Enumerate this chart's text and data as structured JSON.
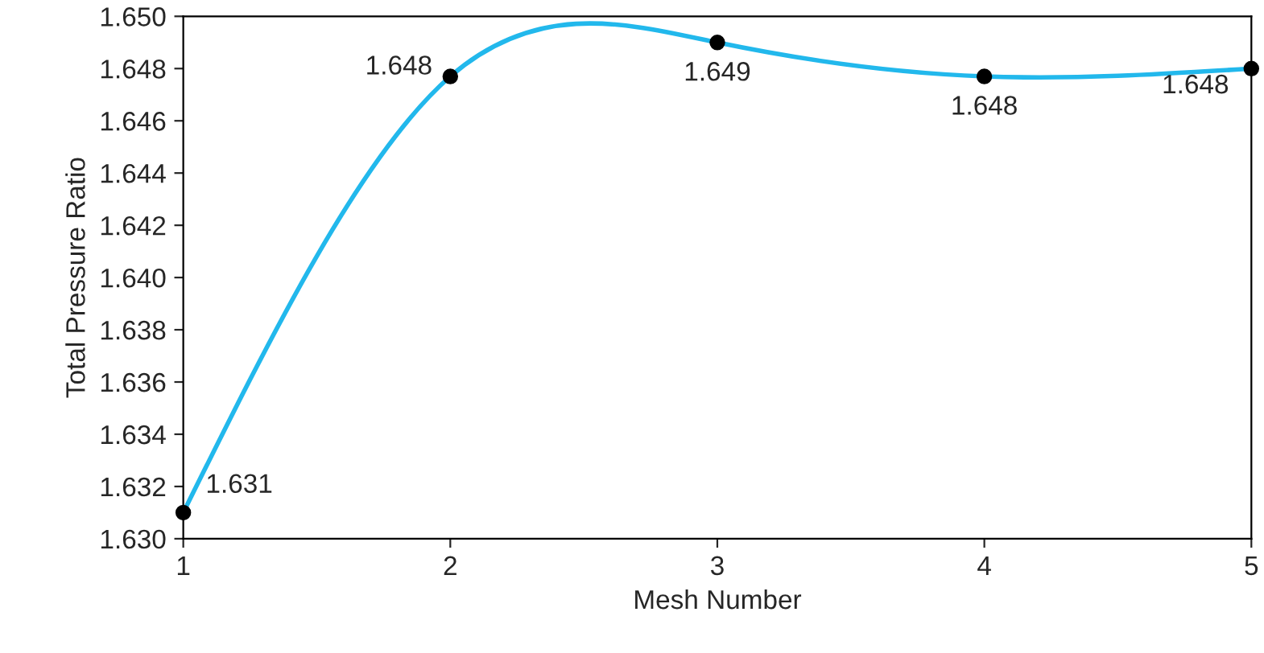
{
  "chart_data": {
    "type": "line",
    "xlabel": "Mesh Number",
    "ylabel": "Total Pressure Ratio",
    "x": [
      1,
      2,
      3,
      4,
      5
    ],
    "series": [
      {
        "color": "#22b8ec",
        "values": [
          1.631,
          1.6477,
          1.649,
          1.6477,
          1.648
        ],
        "value_labels": [
          "1.631",
          "1.648",
          "1.649",
          "1.648",
          "1.648"
        ]
      }
    ],
    "xlim": [
      1,
      5
    ],
    "xticks": [
      1,
      2,
      3,
      4,
      5
    ],
    "ylim": [
      1.63,
      1.65
    ],
    "yticks": [
      {
        "value": 1.63,
        "label": "1.630"
      },
      {
        "value": 1.632,
        "label": "1.632"
      },
      {
        "value": 1.634,
        "label": "1.634"
      },
      {
        "value": 1.636,
        "label": "1.636"
      },
      {
        "value": 1.638,
        "label": "1.638"
      },
      {
        "value": 1.64,
        "label": "1.640"
      },
      {
        "value": 1.642,
        "label": "1.642"
      },
      {
        "value": 1.644,
        "label": "1.644"
      },
      {
        "value": 1.646,
        "label": "1.646"
      },
      {
        "value": 1.648,
        "label": "1.648"
      },
      {
        "value": 1.65,
        "label": "1.650"
      }
    ],
    "grid": false,
    "marker": "circle",
    "line_style": "solid"
  }
}
